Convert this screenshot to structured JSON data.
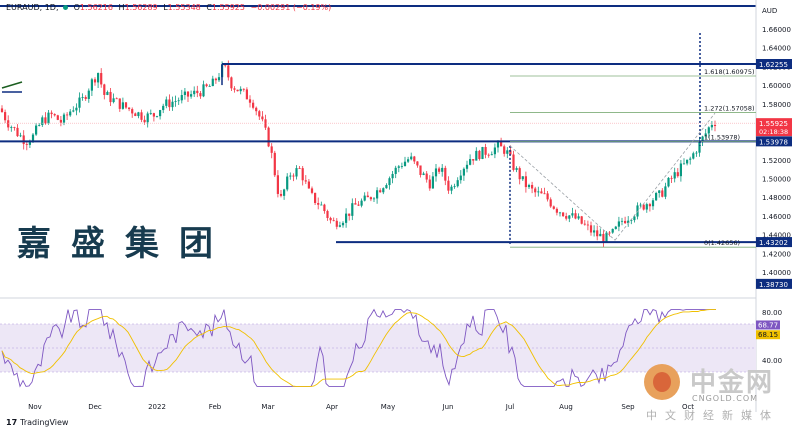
{
  "header": {
    "symbol": "EURAUD, 1D,",
    "open_label": "O",
    "open": "1.56216",
    "high_label": "H",
    "high": "1.56289",
    "low_label": "L",
    "low": "1.55348",
    "close_label": "C",
    "close": "1.55925",
    "change": "−0.00291 (−0.19%)"
  },
  "watermark_brand": "嘉盛集团",
  "footer": {
    "tradingview": "TradingView"
  },
  "logo": {
    "name": "中金网",
    "url": "CNGOLD.COM",
    "sub": "中文财经新媒体"
  },
  "colors": {
    "up": "#089981",
    "down": "#f23645",
    "level": "#0d2d80",
    "fib": "#7fae7a",
    "rsi": "#7e57c2",
    "rsi_ma": "#f0c000"
  },
  "chart_data": {
    "type": "candlestick",
    "symbol": "EURAUD",
    "timeframe": "1D",
    "currency_label": "AUD",
    "y_ticks": [
      "1.66000",
      "1.64000",
      "1.62000",
      "1.60000",
      "1.58000",
      "1.56000",
      "1.54000",
      "1.52000",
      "1.50000",
      "1.48000",
      "1.46000",
      "1.44000",
      "1.42000",
      "1.40000"
    ],
    "ylim": [
      1.3873,
      1.68
    ],
    "x_ticks": [
      "Nov",
      "Dec",
      "2022",
      "Feb",
      "Mar",
      "Apr",
      "May",
      "Jun",
      "Jul",
      "Aug",
      "Sep",
      "Oct"
    ],
    "price_tags": [
      {
        "label": "1.62255",
        "value": 1.62255
      },
      {
        "label": "1.55925",
        "value": 1.55925,
        "time": "02:18:38"
      },
      {
        "label": "1.53978",
        "value": 1.53978
      },
      {
        "label": "1.43202",
        "value": 1.43202
      },
      {
        "label": "1.38730",
        "value": 1.3873
      }
    ],
    "horizontal_levels": [
      1.62255,
      1.53978,
      1.43202
    ],
    "fib_levels": [
      {
        "label": "1.618(1.60975)",
        "value": 1.60975
      },
      {
        "label": "1.272(1.57058)",
        "value": 1.57058
      },
      {
        "label": "1(1.53978)",
        "value": 1.53978
      },
      {
        "label": "0(1.42656)",
        "value": 1.42656
      }
    ],
    "ohlc_last": {
      "open": 1.56216,
      "high": 1.56289,
      "low": 1.55348,
      "close": 1.55925
    },
    "rsi": {
      "ticks": [
        "80.00",
        "40.00"
      ],
      "value_tags": [
        {
          "label": "68.77",
          "value": 68.77
        },
        {
          "label": "68.15",
          "value": 68.15
        }
      ],
      "band": [
        30,
        70
      ]
    }
  }
}
